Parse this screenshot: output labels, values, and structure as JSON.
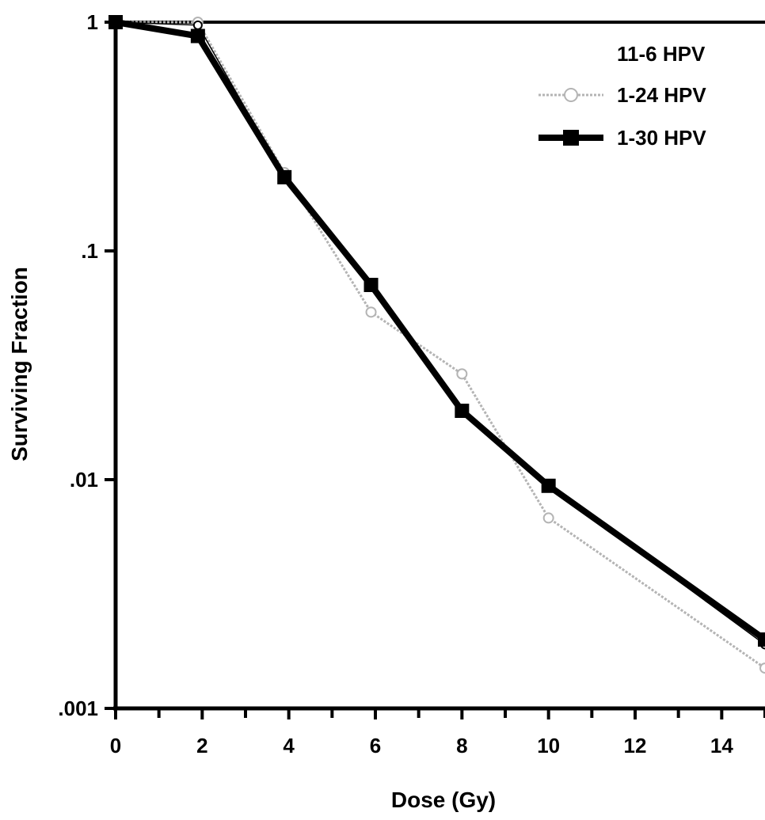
{
  "chart_data": {
    "type": "line",
    "xlabel": "Dose (Gy)",
    "ylabel": "Surviving Fraction",
    "xlim": [
      0,
      15
    ],
    "ylim": [
      0.001,
      1
    ],
    "yscale": "log",
    "x_ticks": [
      0,
      2,
      4,
      6,
      8,
      10,
      12,
      14
    ],
    "x_tick_labels": [
      "0",
      "2",
      "4",
      "6",
      "8",
      "10",
      "12",
      "14"
    ],
    "y_ticks": [
      1,
      0.1,
      0.01,
      0.001
    ],
    "y_tick_labels": [
      "1",
      ".1",
      ".01",
      ".001"
    ],
    "grid": false,
    "legend_position": "top-right",
    "series": [
      {
        "name": "11-6 HPV",
        "color": "#000000",
        "marker": "circle-open",
        "style": "thin",
        "x": [
          0,
          1.9,
          3.9,
          5.9,
          8.0,
          10.0,
          15
        ],
        "y": [
          1.0,
          0.97,
          0.21,
          0.07,
          0.02,
          0.0094,
          0.0019
        ]
      },
      {
        "name": "1-24 HPV",
        "color": "#b4b4b4",
        "marker": "circle-open",
        "style": "dotted",
        "x": [
          0,
          1.9,
          3.9,
          5.9,
          8.0,
          10.0,
          15
        ],
        "y": [
          1.0,
          1.0,
          0.22,
          0.054,
          0.029,
          0.0068,
          0.0015
        ]
      },
      {
        "name": "1-30 HPV",
        "color": "#000000",
        "marker": "square-filled",
        "style": "thick",
        "x": [
          0,
          1.9,
          3.9,
          5.9,
          8.0,
          10.0,
          15
        ],
        "y": [
          1.0,
          0.87,
          0.21,
          0.071,
          0.02,
          0.0094,
          0.002
        ]
      }
    ]
  }
}
